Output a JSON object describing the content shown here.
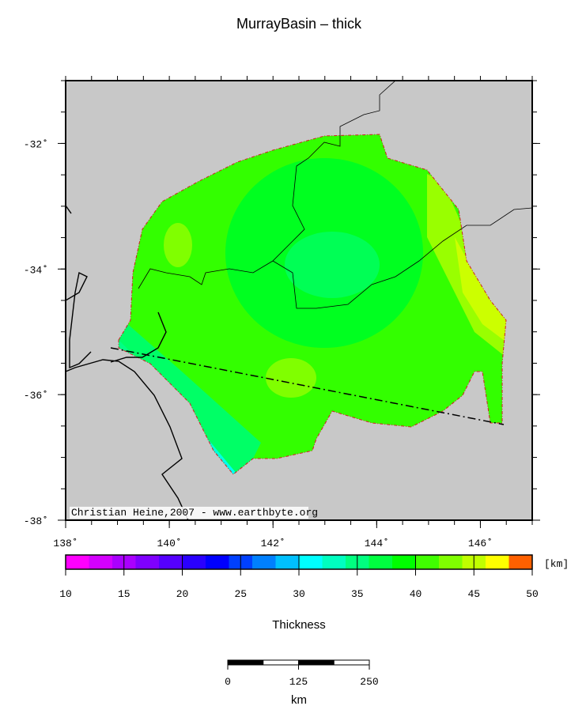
{
  "title": "MurrayBasin – thick",
  "map": {
    "xlim": [
      138,
      147
    ],
    "ylim": [
      -38,
      -31
    ],
    "xticks": [
      {
        "value": 138,
        "label": "138˚"
      },
      {
        "value": 140,
        "label": "140˚"
      },
      {
        "value": 142,
        "label": "142˚"
      },
      {
        "value": 144,
        "label": "144˚"
      },
      {
        "value": 146,
        "label": "146˚"
      }
    ],
    "yticks": [
      {
        "value": -32,
        "label": "-32˚"
      },
      {
        "value": -34,
        "label": "-34˚"
      },
      {
        "value": -36,
        "label": "-36˚"
      },
      {
        "value": -38,
        "label": "-38˚"
      }
    ],
    "credit": "Christian Heine,2007 - www.earthbyte.org"
  },
  "colorbar": {
    "clim": [
      10,
      50
    ],
    "ticks": [
      10,
      15,
      20,
      25,
      30,
      35,
      40,
      45,
      50
    ],
    "unit": "[km]",
    "label": "Thickness",
    "colors": [
      "#ff00ff",
      "#d400ff",
      "#aa00ff",
      "#7f00ff",
      "#5500ff",
      "#2a00ff",
      "#0000ff",
      "#0040ff",
      "#0080ff",
      "#00c0ff",
      "#00ffff",
      "#00ffc0",
      "#00ff80",
      "#00ff40",
      "#00ff00",
      "#40ff00",
      "#80ff00",
      "#c0ff00",
      "#ffff00",
      "#ff6000"
    ]
  },
  "scalebar": {
    "xlim": [
      0,
      250
    ],
    "ticks": [
      0,
      125,
      250
    ],
    "unit": "km"
  }
}
